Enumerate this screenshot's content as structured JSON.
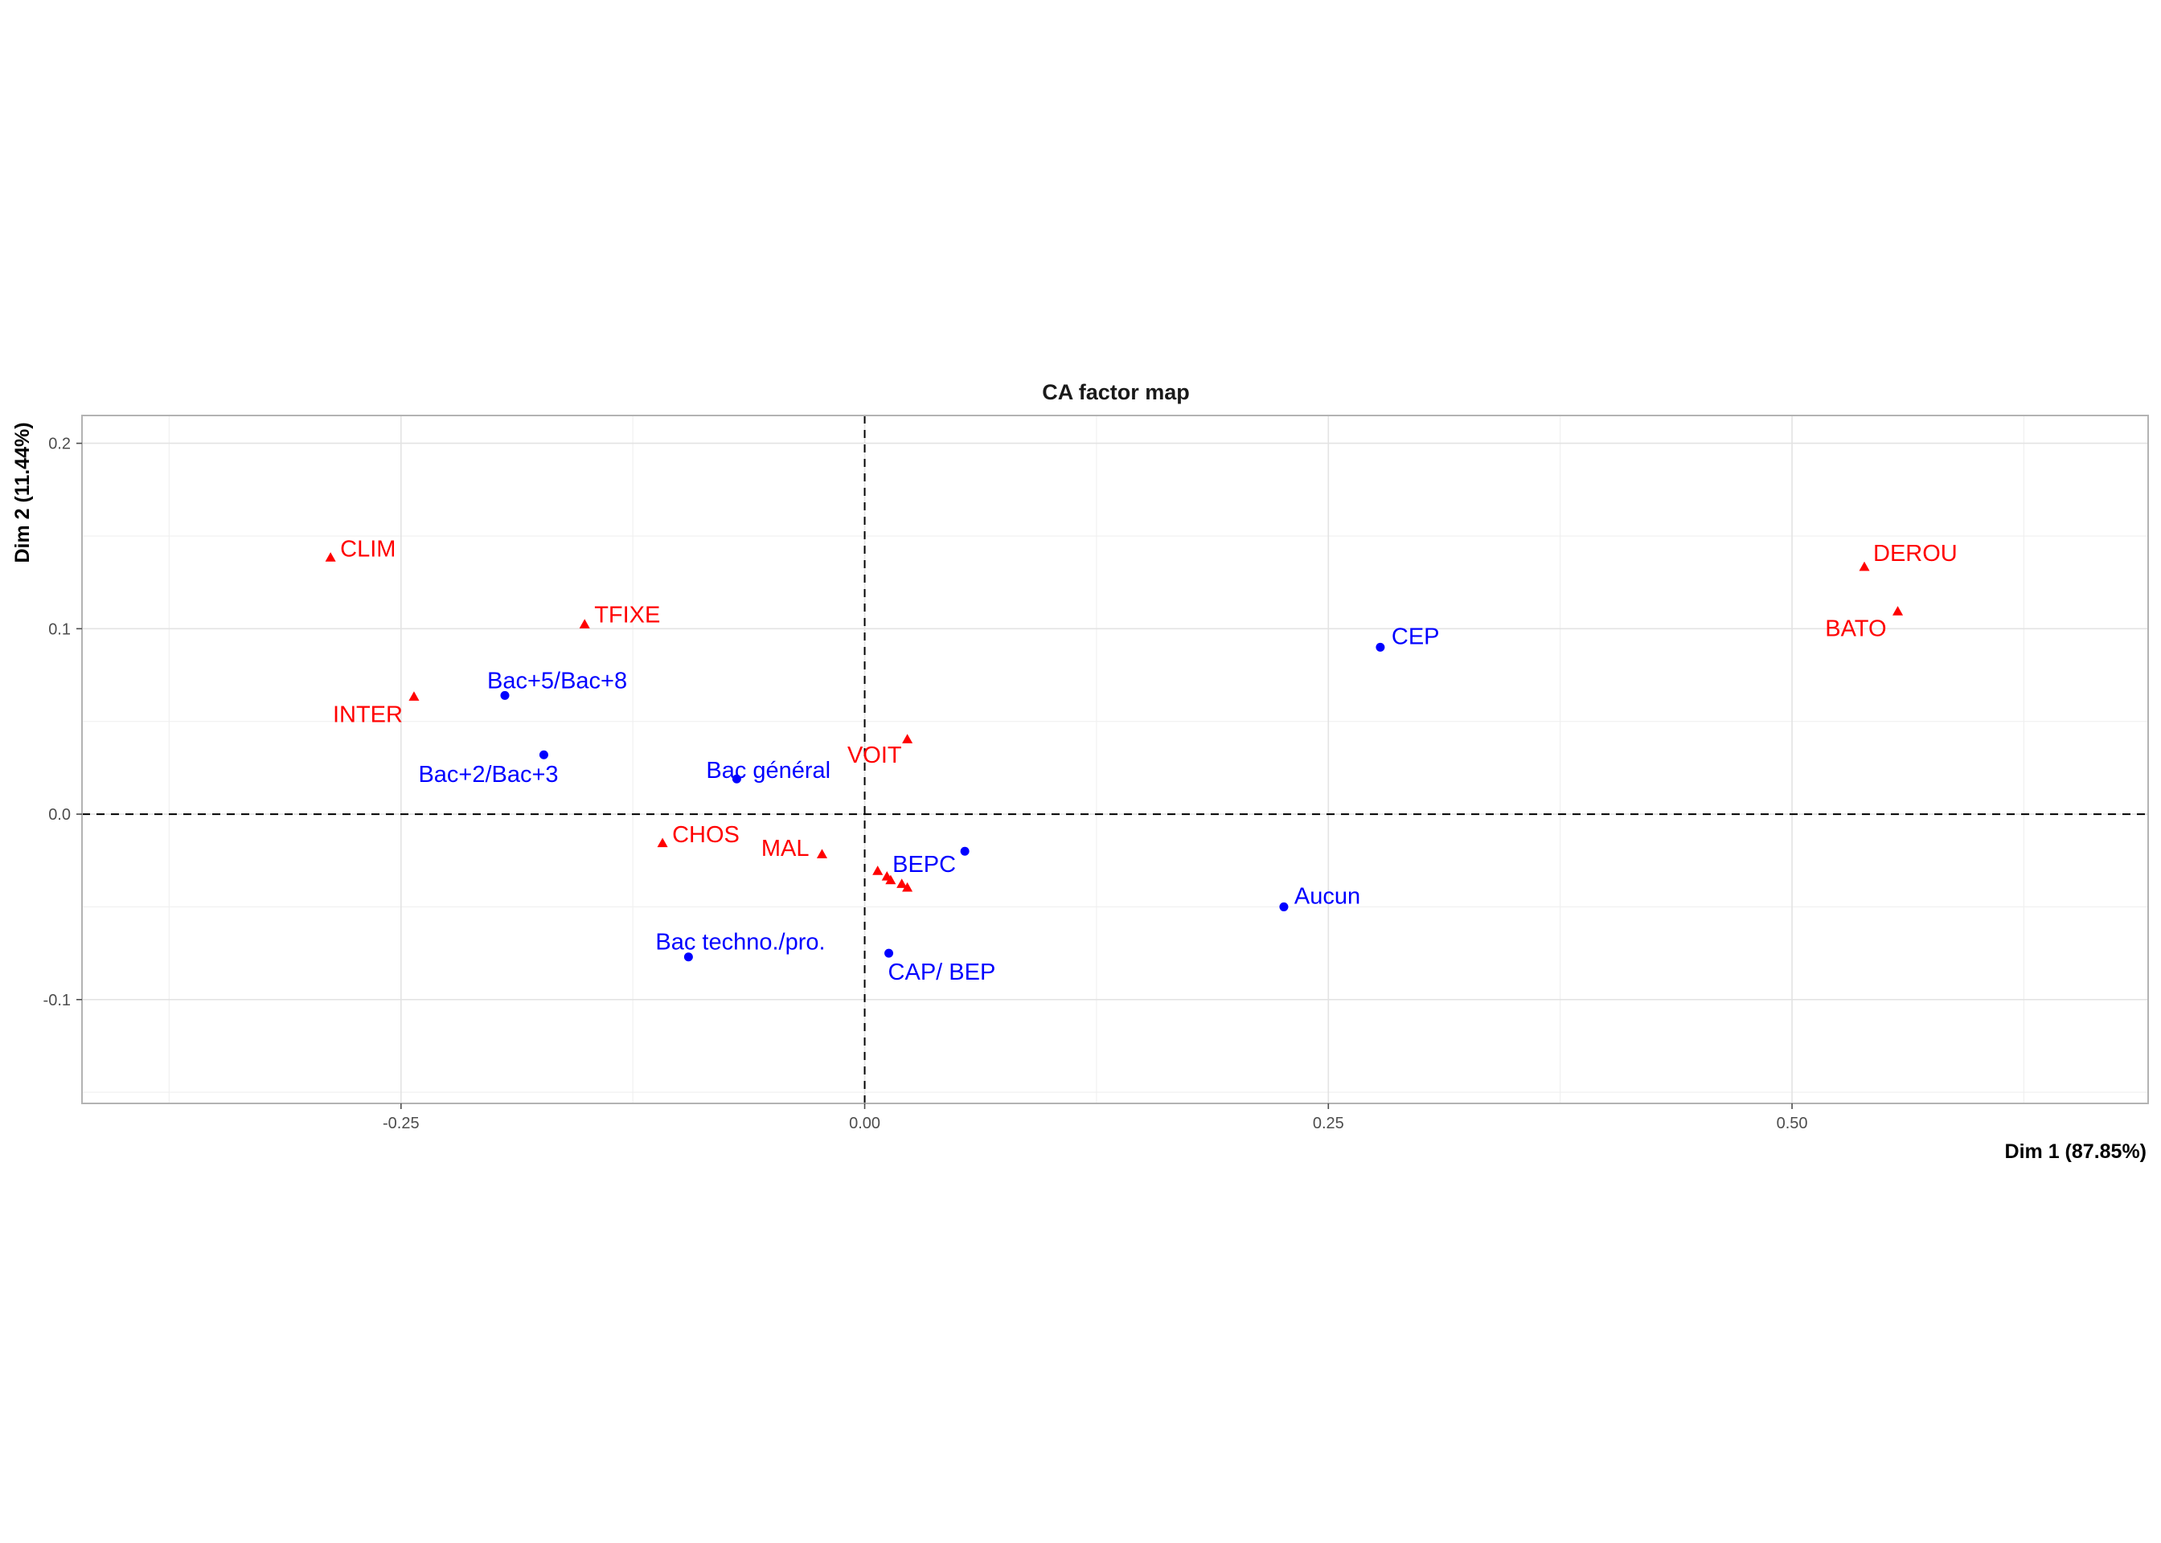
{
  "chart_data": {
    "type": "scatter",
    "title": "CA factor map",
    "xlabel": "Dim 1 (87.85%)",
    "ylabel": "Dim 2 (11.44%)",
    "xlim": [
      -0.422,
      0.692
    ],
    "ylim": [
      -0.156,
      0.215
    ],
    "xticks": [
      {
        "value": -0.25,
        "label": "-0.25"
      },
      {
        "value": 0.0,
        "label": "0.00"
      },
      {
        "value": 0.25,
        "label": "0.25"
      },
      {
        "value": 0.5,
        "label": "0.50"
      }
    ],
    "yticks": [
      {
        "value": -0.1,
        "label": "-0.1"
      },
      {
        "value": 0.0,
        "label": "0.0"
      },
      {
        "value": 0.1,
        "label": "0.1"
      },
      {
        "value": 0.2,
        "label": "0.2"
      }
    ],
    "grid": true,
    "reference_lines": {
      "x": 0,
      "y": 0,
      "style": "dashed"
    },
    "colors": {
      "rows": "#0000ff",
      "columns": "#ff0000"
    },
    "series": [
      {
        "marker": "circle",
        "color": "#0000ff",
        "points": [
          {
            "label": "CEP",
            "x": 0.278,
            "y": 0.09
          },
          {
            "label": "Bac+5/Bac+8",
            "x": -0.194,
            "y": 0.064
          },
          {
            "label": "Bac+2/Bac+3",
            "x": -0.173,
            "y": 0.032
          },
          {
            "label": "Bac général",
            "x": -0.069,
            "y": 0.019
          },
          {
            "label": "BEPC",
            "x": 0.054,
            "y": -0.02
          },
          {
            "label": "Aucun",
            "x": 0.226,
            "y": -0.05
          },
          {
            "label": "Bac techno./pro.",
            "x": -0.095,
            "y": -0.077
          },
          {
            "label": "CAP/ BEP",
            "x": 0.013,
            "y": -0.075
          }
        ]
      },
      {
        "marker": "triangle",
        "color": "#ff0000",
        "points": [
          {
            "label": "CLIM",
            "x": -0.288,
            "y": 0.138
          },
          {
            "label": "TFIXE",
            "x": -0.151,
            "y": 0.102
          },
          {
            "label": "INTER",
            "x": -0.243,
            "y": 0.063
          },
          {
            "label": "DEROU",
            "x": 0.539,
            "y": 0.133
          },
          {
            "label": "BATO",
            "x": 0.557,
            "y": 0.109
          },
          {
            "label": "VOIT",
            "x": 0.023,
            "y": 0.04
          },
          {
            "label": "CHOS",
            "x": -0.109,
            "y": -0.016
          },
          {
            "label": "MAL",
            "x": -0.023,
            "y": -0.022
          },
          {
            "label": "",
            "x": 0.007,
            "y": -0.031
          },
          {
            "label": "",
            "x": 0.012,
            "y": -0.034
          },
          {
            "label": "",
            "x": 0.014,
            "y": -0.036
          },
          {
            "label": "",
            "x": 0.02,
            "y": -0.038
          },
          {
            "label": "",
            "x": 0.023,
            "y": -0.04
          }
        ]
      }
    ]
  }
}
